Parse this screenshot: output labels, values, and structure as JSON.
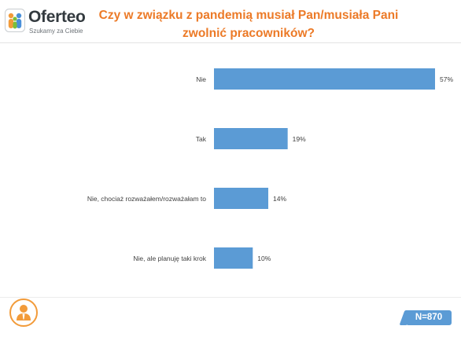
{
  "brand": {
    "name": "Oferteo",
    "tagline": "Szukamy za Ciebie",
    "icon": "oferteo-logo-icon"
  },
  "colors": {
    "title": "#ec7a27",
    "bar": "#5b9bd5",
    "accent": "#f29b3a"
  },
  "sample": "N=870",
  "chart_data": {
    "type": "bar",
    "orientation": "horizontal",
    "title": "Czy w związku z pandemią musiał Pan/musiała Pani zwolnić pracowników?",
    "categories": [
      "Nie",
      "Tak",
      "Nie, chociaż rozważałem/rozważałam to",
      "Nie, ale planuję taki krok"
    ],
    "values": [
      57,
      19,
      14,
      10
    ],
    "value_labels": [
      "57%",
      "19%",
      "14%",
      "10%"
    ],
    "unit": "%",
    "xlim": [
      0,
      57
    ],
    "grid": false,
    "legend": "none"
  }
}
